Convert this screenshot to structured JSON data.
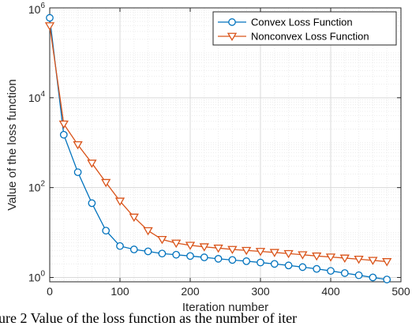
{
  "chart_data": {
    "type": "line",
    "xlabel": "Iteration number",
    "ylabel": "Value of the loss function",
    "xlim": [
      0,
      500
    ],
    "ylim": [
      0.8,
      1000000
    ],
    "yscale": "log",
    "x_ticks": [
      "0",
      "100",
      "200",
      "300",
      "400",
      "500"
    ],
    "y_ticks": [
      {
        "base": "10",
        "exp": "0"
      },
      {
        "base": "10",
        "exp": "2"
      },
      {
        "base": "10",
        "exp": "4"
      },
      {
        "base": "10",
        "exp": "6"
      }
    ],
    "grid": true,
    "legend_position": "top-right",
    "series": [
      {
        "name": "Convex Loss Function",
        "color": "#0072BD",
        "marker": "circle",
        "x": [
          0,
          20,
          40,
          60,
          80,
          100,
          120,
          140,
          160,
          180,
          200,
          220,
          240,
          260,
          280,
          300,
          320,
          340,
          360,
          380,
          400,
          420,
          440,
          460,
          480
        ],
        "y": [
          600000,
          1500,
          220,
          45,
          11,
          5.0,
          4.2,
          3.8,
          3.4,
          3.2,
          3.0,
          2.8,
          2.6,
          2.45,
          2.3,
          2.15,
          2.0,
          1.85,
          1.7,
          1.55,
          1.4,
          1.25,
          1.12,
          1.0,
          0.9
        ]
      },
      {
        "name": "Nonconvex Loss Function",
        "color": "#D95319",
        "marker": "triangle-down",
        "x": [
          0,
          20,
          40,
          60,
          80,
          100,
          120,
          140,
          160,
          180,
          200,
          220,
          240,
          260,
          280,
          300,
          320,
          340,
          360,
          380,
          400,
          420,
          440,
          460,
          480
        ],
        "y": [
          400000,
          2600,
          900,
          350,
          130,
          50,
          22,
          11,
          7.0,
          5.8,
          5.2,
          4.8,
          4.5,
          4.2,
          4.0,
          3.8,
          3.6,
          3.4,
          3.2,
          3.0,
          2.85,
          2.7,
          2.55,
          2.4,
          2.25
        ]
      }
    ]
  },
  "caption": "ure 2 Value of the loss function as the number of iter"
}
